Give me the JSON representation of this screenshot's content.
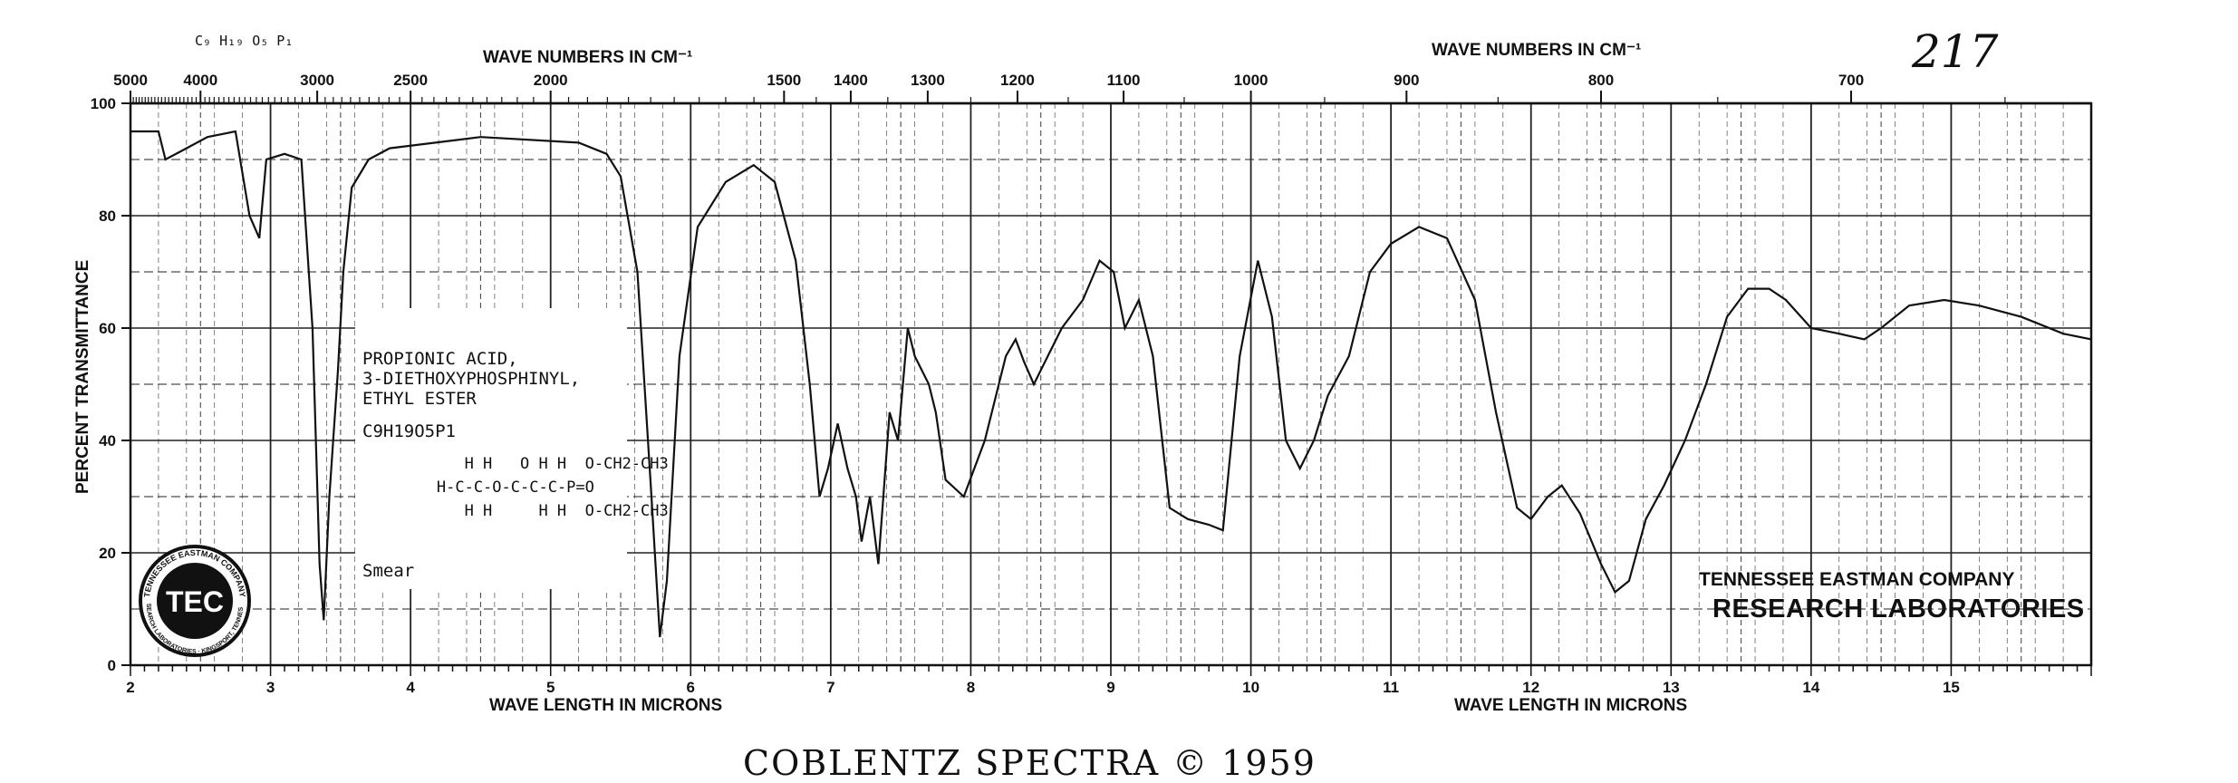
{
  "catalog_number": "217",
  "formula_top": "C₉ H₁₉ O₅ P₁",
  "chart_data": {
    "type": "line",
    "top_axis_label": "WAVE NUMBERS IN CM⁻¹",
    "xlabel": "WAVE LENGTH IN MICRONS",
    "ylabel": "PERCENT TRANSMITTANCE",
    "xlim": [
      2,
      16
    ],
    "ylim": [
      0,
      100
    ],
    "x_ticks": [
      2,
      3,
      4,
      5,
      6,
      7,
      8,
      9,
      10,
      11,
      12,
      13,
      14,
      15
    ],
    "y_ticks": [
      0,
      20,
      40,
      60,
      80,
      100
    ],
    "wavenumber_ticks": [
      5000,
      4000,
      3000,
      2500,
      2000,
      1500,
      1400,
      1300,
      1200,
      1100,
      1000,
      900,
      800,
      700
    ],
    "grid": true,
    "series": [
      {
        "values": [
          [
            2.0,
            95
          ],
          [
            2.2,
            95
          ],
          [
            2.25,
            90
          ],
          [
            2.4,
            92
          ],
          [
            2.55,
            94
          ],
          [
            2.75,
            95
          ],
          [
            2.85,
            80
          ],
          [
            2.92,
            76
          ],
          [
            2.97,
            90
          ],
          [
            3.1,
            91
          ],
          [
            3.22,
            90
          ],
          [
            3.3,
            60
          ],
          [
            3.35,
            18
          ],
          [
            3.38,
            8
          ],
          [
            3.42,
            30
          ],
          [
            3.48,
            52
          ],
          [
            3.52,
            70
          ],
          [
            3.58,
            85
          ],
          [
            3.7,
            90
          ],
          [
            3.85,
            92
          ],
          [
            4.5,
            94
          ],
          [
            5.2,
            93
          ],
          [
            5.4,
            91
          ],
          [
            5.5,
            87
          ],
          [
            5.62,
            70
          ],
          [
            5.72,
            30
          ],
          [
            5.78,
            5
          ],
          [
            5.83,
            15
          ],
          [
            5.92,
            55
          ],
          [
            6.05,
            78
          ],
          [
            6.25,
            86
          ],
          [
            6.45,
            89
          ],
          [
            6.6,
            86
          ],
          [
            6.75,
            72
          ],
          [
            6.85,
            50
          ],
          [
            6.92,
            30
          ],
          [
            6.98,
            35
          ],
          [
            7.05,
            43
          ],
          [
            7.12,
            35
          ],
          [
            7.18,
            30
          ],
          [
            7.22,
            22
          ],
          [
            7.28,
            30
          ],
          [
            7.34,
            18
          ],
          [
            7.42,
            45
          ],
          [
            7.48,
            40
          ],
          [
            7.55,
            60
          ],
          [
            7.6,
            55
          ],
          [
            7.7,
            50
          ],
          [
            7.75,
            45
          ],
          [
            7.82,
            33
          ],
          [
            7.95,
            30
          ],
          [
            8.1,
            40
          ],
          [
            8.25,
            55
          ],
          [
            8.32,
            58
          ],
          [
            8.38,
            54
          ],
          [
            8.45,
            50
          ],
          [
            8.55,
            55
          ],
          [
            8.65,
            60
          ],
          [
            8.8,
            65
          ],
          [
            8.92,
            72
          ],
          [
            9.02,
            70
          ],
          [
            9.1,
            60
          ],
          [
            9.2,
            65
          ],
          [
            9.3,
            55
          ],
          [
            9.42,
            28
          ],
          [
            9.55,
            26
          ],
          [
            9.7,
            25
          ],
          [
            9.8,
            24
          ],
          [
            9.92,
            55
          ],
          [
            10.05,
            72
          ],
          [
            10.15,
            62
          ],
          [
            10.25,
            40
          ],
          [
            10.35,
            35
          ],
          [
            10.45,
            40
          ],
          [
            10.55,
            48
          ],
          [
            10.7,
            55
          ],
          [
            10.85,
            70
          ],
          [
            11.0,
            75
          ],
          [
            11.2,
            78
          ],
          [
            11.4,
            76
          ],
          [
            11.6,
            65
          ],
          [
            11.75,
            45
          ],
          [
            11.9,
            28
          ],
          [
            12.0,
            26
          ],
          [
            12.12,
            30
          ],
          [
            12.22,
            32
          ],
          [
            12.35,
            27
          ],
          [
            12.5,
            18
          ],
          [
            12.6,
            13
          ],
          [
            12.7,
            15
          ],
          [
            12.82,
            26
          ],
          [
            12.95,
            32
          ],
          [
            13.1,
            40
          ],
          [
            13.25,
            50
          ],
          [
            13.4,
            62
          ],
          [
            13.55,
            67
          ],
          [
            13.7,
            67
          ],
          [
            13.82,
            65
          ],
          [
            14.0,
            60
          ],
          [
            14.2,
            59
          ],
          [
            14.38,
            58
          ],
          [
            14.5,
            60
          ],
          [
            14.7,
            64
          ],
          [
            14.95,
            65
          ],
          [
            15.2,
            64
          ],
          [
            15.5,
            62
          ],
          [
            15.8,
            59
          ],
          [
            16.0,
            58
          ]
        ]
      }
    ]
  },
  "label": {
    "lines": [
      "PROPIONIC ACID,",
      "3-DIETHOXYPHOSPHINYL,",
      "ETHYL ESTER"
    ],
    "formula": "C9H19O5P1",
    "structure": [
      "           H H   O H H  O-CH2-CH3",
      "        H-C-C-O-C-C-C-P=O",
      "           H H     H H  O-CH2-CH3"
    ],
    "sample": "Smear"
  },
  "company": {
    "line1": "TENNESSEE EASTMAN COMPANY",
    "line2": "RESEARCH LABORATORIES"
  },
  "logo": {
    "text": "TEC",
    "ring_top": "TENNESSEE EASTMAN COMPANY",
    "ring_bottom": "RESEARCH LABORATORIES · KINGSPORT, TENNESSEE"
  },
  "footer": "COBLENTZ SPECTRA © 1959"
}
